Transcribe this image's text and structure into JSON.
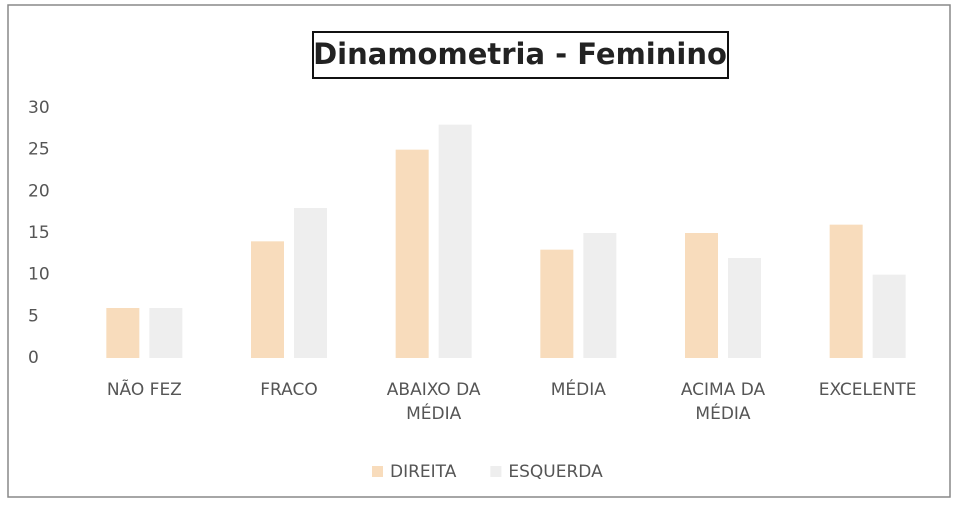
{
  "chart_data": {
    "type": "bar",
    "title": "Dinamometria - Feminino",
    "categories": [
      "NÃO FEZ",
      "FRACO",
      "ABAIXO DA MÉDIA",
      "MÉDIA",
      "ACIMA DA MÉDIA",
      "EXCELENTE"
    ],
    "series": [
      {
        "name": "DIREITA",
        "color": "#f8dcbc",
        "values": [
          6,
          14,
          25,
          13,
          15,
          16
        ]
      },
      {
        "name": "ESQUERDA",
        "color": "#eeeeee",
        "values": [
          6,
          18,
          28,
          15,
          12,
          10
        ]
      }
    ],
    "ylim": [
      0,
      30
    ],
    "yticks": [
      0,
      5,
      10,
      15,
      20,
      25,
      30
    ],
    "grid": false,
    "legend": "bottom"
  }
}
